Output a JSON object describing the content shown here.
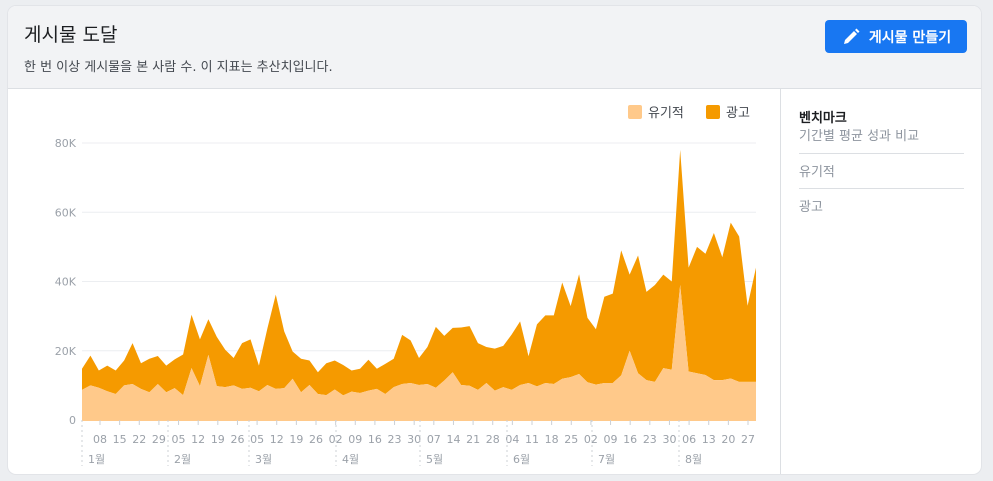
{
  "header": {
    "title": "게시물 도달",
    "subtitle": "한 번 이상 게시물을 본 사람 수. 이 지표는 추산치입니다.",
    "create_button": "게시물 만들기",
    "create_icon": "pencil-icon"
  },
  "sidebar": {
    "benchmark_title": "벤치마크",
    "benchmark_subtitle": "기간별 평균 성과 비교",
    "items": [
      {
        "label": "유기적"
      },
      {
        "label": "광고"
      }
    ]
  },
  "colors": {
    "organic": "#ffc98a",
    "ad": "#f59a00",
    "button": "#1877f2"
  },
  "chart_data": {
    "type": "area",
    "stacked": true,
    "legend": {
      "position": "top-right",
      "entries": [
        "유기적",
        "광고"
      ]
    },
    "ylim": [
      0,
      80000
    ],
    "yticks": [
      "0",
      "20K",
      "40K",
      "60K",
      "80K"
    ],
    "ytick_values": [
      0,
      20000,
      40000,
      60000,
      80000
    ],
    "grid": true,
    "xtick_labels": [
      "08",
      "15",
      "22",
      "29",
      "05",
      "12",
      "19",
      "26",
      "05",
      "12",
      "19",
      "26",
      "02",
      "09",
      "16",
      "23",
      "30",
      "07",
      "14",
      "21",
      "28",
      "04",
      "11",
      "18",
      "25",
      "02",
      "09",
      "16",
      "23",
      "30",
      "06",
      "13",
      "20",
      "27"
    ],
    "month_labels": [
      "1월",
      "2월",
      "3월",
      "4월",
      "5월",
      "6월",
      "7월",
      "8월"
    ],
    "series": [
      {
        "name": "유기적",
        "values": [
          8.7,
          10.0,
          9.3,
          8.3,
          7.5,
          10.0,
          10.4,
          9.0,
          8.0,
          10.4,
          8.0,
          9.2,
          7.2,
          15.0,
          9.8,
          18.8,
          9.8,
          9.5,
          10.0,
          9.0,
          9.3,
          8.3,
          10.1,
          9.0,
          9.2,
          11.9,
          8.0,
          10.1,
          7.5,
          7.2,
          8.8,
          7.1,
          8.2,
          7.8,
          8.5,
          9.0,
          7.5,
          9.5,
          10.4,
          10.7,
          10.1,
          10.4,
          9.3,
          11.4,
          13.8,
          10.1,
          9.9,
          8.7,
          10.7,
          8.5,
          9.5,
          8.7,
          10.1,
          10.7,
          9.7,
          10.7,
          10.4,
          11.9,
          12.4,
          13.3,
          10.9,
          10.2,
          10.7,
          10.7,
          12.9,
          20.0,
          13.5,
          11.5,
          11.0,
          15.0,
          14.5,
          39.0,
          14.0,
          13.5,
          13.0,
          11.5,
          11.5,
          12.0,
          11.0,
          11.0,
          11.0
        ]
      },
      {
        "name": "광고",
        "values": [
          6.1,
          8.6,
          5.0,
          7.4,
          6.8,
          7.2,
          11.8,
          7.4,
          9.7,
          8.1,
          7.7,
          8.3,
          11.7,
          15.4,
          13.5,
          10.3,
          14.2,
          10.8,
          7.9,
          13.2,
          14.0,
          7.4,
          16.3,
          27.2,
          16.4,
          7.9,
          9.7,
          7.1,
          6.3,
          9.2,
          8.4,
          8.8,
          6.1,
          7.0,
          8.9,
          5.8,
          8.7,
          8.2,
          14.2,
          12.3,
          7.8,
          10.7,
          17.6,
          12.9,
          12.8,
          16.6,
          17.2,
          13.5,
          10.4,
          12.1,
          11.9,
          16.0,
          18.4,
          7.7,
          17.9,
          19.5,
          19.8,
          27.8,
          20.5,
          28.8,
          18.6,
          16.0,
          24.9,
          25.8,
          36.1,
          22.0,
          34.0,
          25.5,
          28.0,
          27.0,
          25.5,
          39.0,
          30.0,
          36.5,
          35.0,
          42.5,
          35.5,
          45.0,
          42.0,
          22.0,
          33.0
        ]
      }
    ],
    "unit_note": "values in thousands"
  }
}
